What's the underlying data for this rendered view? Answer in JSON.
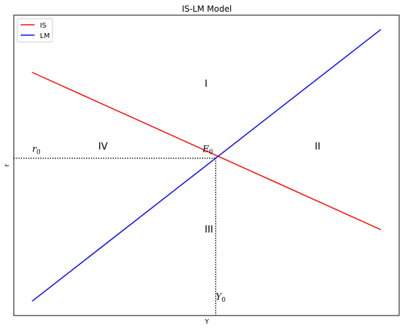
{
  "chart_data": {
    "type": "line",
    "title": "IS-LM Model",
    "xlabel": "Y",
    "ylabel": "r",
    "xlim": [
      0,
      10.5
    ],
    "ylim": [
      0,
      10.5
    ],
    "grid": false,
    "legend_position": "top-left",
    "series": [
      {
        "name": "IS",
        "color": "#ff0000",
        "x": [
          0.5,
          10
        ],
        "y": [
          8.5,
          3
        ]
      },
      {
        "name": "LM",
        "color": "#0000ff",
        "x": [
          0.5,
          10
        ],
        "y": [
          0.5,
          10
        ]
      }
    ],
    "equilibrium": {
      "x": 5.5,
      "y": 5.5
    },
    "annotations": [
      {
        "id": "region-1",
        "text": "I",
        "x": 5.2,
        "y": 8.0
      },
      {
        "id": "region-2",
        "text": "II",
        "x": 8.2,
        "y": 5.8
      },
      {
        "id": "region-3",
        "text": "III",
        "x": 5.2,
        "y": 2.9
      },
      {
        "id": "region-4",
        "text": "IV",
        "x": 2.3,
        "y": 5.8
      }
    ],
    "labels": {
      "e0": {
        "base": "E",
        "sub": "0"
      },
      "r0": {
        "base": "r",
        "sub": "0"
      },
      "y0": {
        "base": "Y",
        "sub": "0"
      }
    }
  }
}
